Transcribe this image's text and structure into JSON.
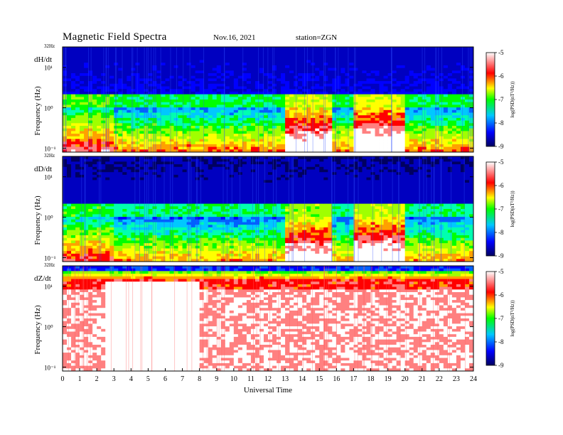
{
  "header": {
    "title": "Magnetic  Field  Spectra",
    "date": "Nov.16, 2021",
    "station": "station=ZGN"
  },
  "chart_data": {
    "type": "heatmap",
    "xlabel": "Universal Time",
    "x_ticks": [
      "0",
      "1",
      "2",
      "3",
      "4",
      "5",
      "6",
      "7",
      "8",
      "9",
      "10",
      "11",
      "12",
      "13",
      "14",
      "15",
      "16",
      "17",
      "18",
      "19",
      "20",
      "21",
      "22",
      "23",
      "24"
    ],
    "xlim": [
      0,
      24
    ],
    "ylabel": "Frequency  (Hz)",
    "y_ticks": [
      "10⁻¹",
      "10⁰",
      "10¹"
    ],
    "y_top_label": "32Hz",
    "yscale": "log",
    "colorbar": {
      "label": "log(PSD(nT²/Hz))",
      "ticks": [
        "-5",
        "-6",
        "-7",
        "-8",
        "-9"
      ],
      "range": [
        -9,
        -5
      ],
      "colors": [
        "#000060",
        "#0000ff",
        "#00c8ff",
        "#00ff00",
        "#ffff00",
        "#ff0000",
        "#ffffff"
      ]
    },
    "panels": [
      {
        "name": "dH/dt"
      },
      {
        "name": "dD/dt"
      },
      {
        "name": "dZ/dt"
      }
    ]
  }
}
